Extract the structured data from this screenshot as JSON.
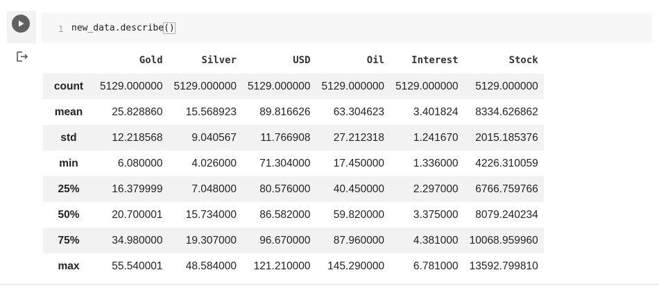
{
  "code_cell": {
    "line_number": "1",
    "code_prefix": "new_data.describe",
    "code_parens": "()"
  },
  "icons": {
    "run": "play-icon",
    "output": "output-arrow-icon"
  },
  "table": {
    "columns": [
      "",
      "Gold",
      "Silver",
      "USD",
      "Oil",
      "Interest",
      "Stock"
    ],
    "rows": [
      {
        "label": "count",
        "values": [
          "5129.000000",
          "5129.000000",
          "5129.000000",
          "5129.000000",
          "5129.000000",
          "5129.000000"
        ]
      },
      {
        "label": "mean",
        "values": [
          "25.828860",
          "15.568923",
          "89.816626",
          "63.304623",
          "3.401824",
          "8334.626862"
        ]
      },
      {
        "label": "std",
        "values": [
          "12.218568",
          "9.040567",
          "11.766908",
          "27.212318",
          "1.241670",
          "2015.185376"
        ]
      },
      {
        "label": "min",
        "values": [
          "6.080000",
          "4.026000",
          "71.304000",
          "17.450000",
          "1.336000",
          "4226.310059"
        ]
      },
      {
        "label": "25%",
        "values": [
          "16.379999",
          "7.048000",
          "80.576000",
          "40.450000",
          "2.297000",
          "6766.759766"
        ]
      },
      {
        "label": "50%",
        "values": [
          "20.700001",
          "15.734000",
          "86.582000",
          "59.820000",
          "3.375000",
          "8079.240234"
        ]
      },
      {
        "label": "75%",
        "values": [
          "34.980000",
          "19.307000",
          "96.670000",
          "87.960000",
          "4.381000",
          "10068.959960"
        ]
      },
      {
        "label": "max",
        "values": [
          "55.540001",
          "48.584000",
          "121.210000",
          "145.290000",
          "6.781000",
          "13592.799810"
        ]
      }
    ]
  }
}
